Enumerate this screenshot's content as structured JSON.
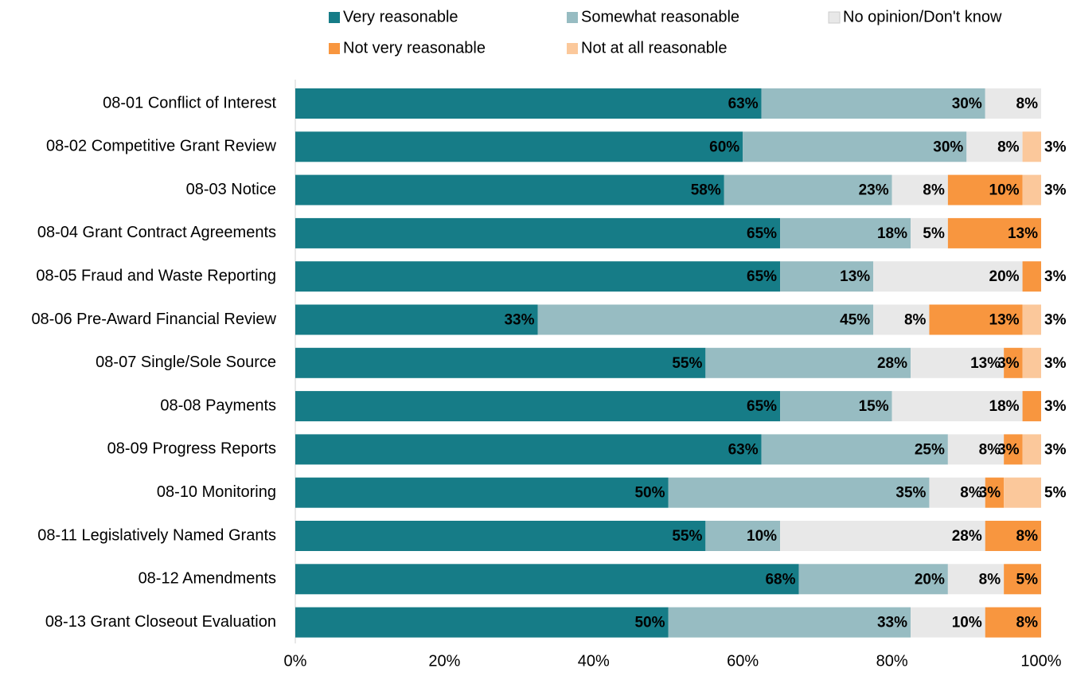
{
  "chart_data": {
    "type": "stacked_bar_horizontal",
    "categories": [
      "08-01 Conflict of Interest",
      "08-02 Competitive Grant Review",
      "08-03 Notice",
      "08-04 Grant Contract Agreements",
      "08-05 Fraud and Waste Reporting",
      "08-06 Pre-Award Financial Review",
      "08-07 Single/Sole Source",
      "08-08 Payments",
      "08-09 Progress Reports",
      "08-10 Monitoring",
      "08-11 Legislatively Named Grants",
      "08-12 Amendments",
      "08-13 Grant Closeout Evaluation"
    ],
    "series": [
      {
        "name": "Very reasonable",
        "color": "#167c87",
        "label_color": "#ffffff",
        "values": [
          62.5,
          60,
          57.5,
          65,
          65,
          32.5,
          55,
          65,
          62.5,
          50,
          55,
          67.5,
          50
        ],
        "value_labels": [
          "63%",
          "60%",
          "58%",
          "65%",
          "65%",
          "33%",
          "55%",
          "65%",
          "63%",
          "50%",
          "55%",
          "68%",
          "50%"
        ]
      },
      {
        "name": "Somewhat reasonable",
        "color": "#97bcc2",
        "label_color": "#ffffff",
        "values": [
          30,
          30,
          22.5,
          17.5,
          12.5,
          45,
          27.5,
          15,
          25,
          35,
          10,
          20,
          32.5
        ],
        "value_labels": [
          "30%",
          "30%",
          "23%",
          "18%",
          "13%",
          "45%",
          "28%",
          "15%",
          "25%",
          "35%",
          "10%",
          "20%",
          "33%"
        ]
      },
      {
        "name": "No opinion/Don't know",
        "color": "#e8e8e8",
        "label_color": "#000000",
        "values": [
          7.5,
          7.5,
          7.5,
          5,
          20,
          7.5,
          12.5,
          17.5,
          7.5,
          7.5,
          27.5,
          7.5,
          10
        ],
        "value_labels": [
          "8%",
          "8%",
          "8%",
          "5%",
          "20%",
          "8%",
          "13%",
          "18%",
          "8%",
          "8%",
          "28%",
          "8%",
          "10%"
        ]
      },
      {
        "name": "Not very reasonable",
        "color": "#f8963f",
        "label_color": "#000000",
        "values": [
          0,
          0,
          10,
          12.5,
          2.5,
          12.5,
          2.5,
          2.5,
          2.5,
          2.5,
          7.5,
          5,
          7.5
        ],
        "value_labels": [
          null,
          null,
          "10%",
          "13%",
          "3%",
          "13%",
          "3%",
          "3%",
          "3%",
          "3%",
          "8%",
          "5%",
          "8%"
        ]
      },
      {
        "name": "Not at all reasonable",
        "color": "#fbc89b",
        "label_color": "#000000",
        "values": [
          0,
          2.5,
          2.5,
          0,
          0,
          2.5,
          2.5,
          0,
          2.5,
          5,
          0,
          0,
          0
        ],
        "value_labels": [
          null,
          "3%",
          "3%",
          null,
          null,
          "3%",
          "3%",
          null,
          "3%",
          "5%",
          null,
          null,
          null
        ]
      }
    ],
    "xlim": [
      0,
      100
    ],
    "xticks": [
      {
        "value": 0,
        "label": "0%"
      },
      {
        "value": 20,
        "label": "20%"
      },
      {
        "value": 40,
        "label": "40%"
      },
      {
        "value": 60,
        "label": "60%"
      },
      {
        "value": 80,
        "label": "80%"
      },
      {
        "value": 100,
        "label": "100%"
      }
    ],
    "legend": "top"
  }
}
